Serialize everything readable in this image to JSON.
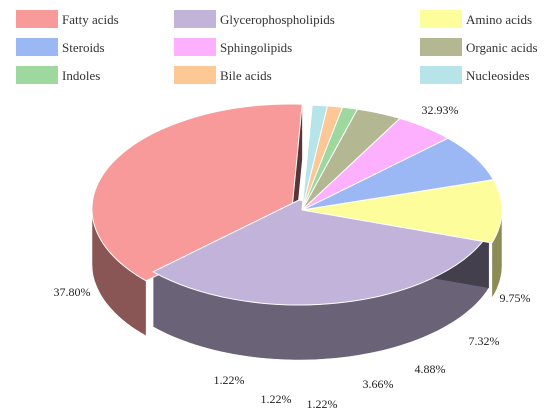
{
  "chart_data": {
    "type": "pie",
    "style": "3d-exploded",
    "legend_position": "top",
    "series": [
      {
        "name": "Fatty acids",
        "value": 37.8,
        "label": "37.80%",
        "color": "#f99a9a"
      },
      {
        "name": "Glycerophospholipids",
        "value": 32.93,
        "label": "32.93%",
        "color": "#c1b3d9"
      },
      {
        "name": "Amino acids",
        "value": 9.75,
        "label": "9.75%",
        "color": "#fdfd9b"
      },
      {
        "name": "Steroids",
        "value": 7.32,
        "label": "7.32%",
        "color": "#9bb8f5"
      },
      {
        "name": "Sphingolipids",
        "value": 4.88,
        "label": "4.88%",
        "color": "#fdb0fd"
      },
      {
        "name": "Organic acids",
        "value": 3.66,
        "label": "3.66%",
        "color": "#b3b893"
      },
      {
        "name": "Indoles",
        "value": 1.22,
        "label": "1.22%",
        "color": "#9ed89e"
      },
      {
        "name": "Bile acids",
        "value": 1.22,
        "label": "1.22%",
        "color": "#fdc796"
      },
      {
        "name": "Nucleosides",
        "value": 1.22,
        "label": "1.22%",
        "color": "#b7e4e9"
      }
    ]
  }
}
